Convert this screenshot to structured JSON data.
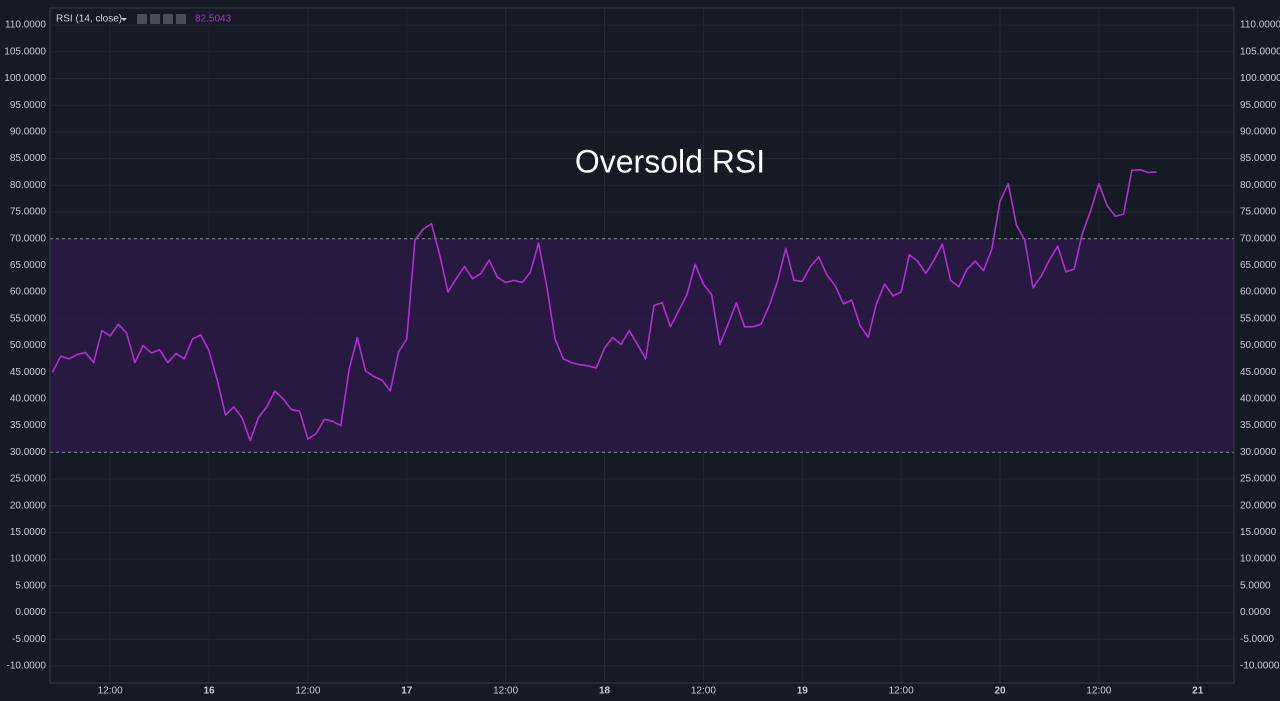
{
  "chart_data": {
    "type": "line",
    "indicator": "RSI (14, close)",
    "last_value": "82.5043",
    "title": "Oversold RSI",
    "xlim": [
      4.7,
      148.4
    ],
    "xticks": [
      {
        "value": 12,
        "label": "12:00"
      },
      {
        "value": 24,
        "label": "16"
      },
      {
        "value": 36,
        "label": "12:00"
      },
      {
        "value": 48,
        "label": "17"
      },
      {
        "value": 60,
        "label": "12:00"
      },
      {
        "value": 72,
        "label": "18"
      },
      {
        "value": 84,
        "label": "12:00"
      },
      {
        "value": 96,
        "label": "19"
      },
      {
        "value": 108,
        "label": "12:00"
      },
      {
        "value": 120,
        "label": "20"
      },
      {
        "value": 132,
        "label": "12:00"
      },
      {
        "value": 144,
        "label": "21"
      }
    ],
    "ylim": [
      -13.2,
      113.2
    ],
    "yticks": [
      {
        "value": -10,
        "label": "-10.0000"
      },
      {
        "value": -5,
        "label": "-5.0000"
      },
      {
        "value": 0,
        "label": "0.0000"
      },
      {
        "value": 5,
        "label": "5.0000"
      },
      {
        "value": 10,
        "label": "10.0000"
      },
      {
        "value": 15,
        "label": "15.0000"
      },
      {
        "value": 20,
        "label": "20.0000"
      },
      {
        "value": 25,
        "label": "25.0000"
      },
      {
        "value": 30,
        "label": "30.0000"
      },
      {
        "value": 35,
        "label": "35.0000"
      },
      {
        "value": 40,
        "label": "40.0000"
      },
      {
        "value": 45,
        "label": "45.0000"
      },
      {
        "value": 50,
        "label": "50.0000"
      },
      {
        "value": 55,
        "label": "55.0000"
      },
      {
        "value": 60,
        "label": "60.0000"
      },
      {
        "value": 65,
        "label": "65.0000"
      },
      {
        "value": 70,
        "label": "70.0000"
      },
      {
        "value": 75,
        "label": "75.0000"
      },
      {
        "value": 80,
        "label": "80.0000"
      },
      {
        "value": 85,
        "label": "85.0000"
      },
      {
        "value": 90,
        "label": "90.0000"
      },
      {
        "value": 95,
        "label": "95.0000"
      },
      {
        "value": 100,
        "label": "100.0000"
      },
      {
        "value": 105,
        "label": "105.0000"
      },
      {
        "value": 110,
        "label": "110.0000"
      }
    ],
    "grid": true,
    "band": {
      "lower": 30,
      "upper": 70,
      "color": "#2a1a45"
    },
    "x": [
      5,
      6,
      7,
      8,
      9,
      10,
      11,
      12,
      13,
      14,
      15,
      16,
      17,
      18,
      19,
      20,
      21,
      22,
      23,
      24,
      25,
      26,
      27,
      28,
      29,
      30,
      31,
      32,
      33,
      34,
      35,
      36,
      37,
      38,
      39,
      40,
      41,
      42,
      43,
      44,
      45,
      46,
      47,
      48,
      49,
      50,
      51,
      52,
      53,
      54,
      55,
      56,
      57,
      58,
      59,
      60,
      61,
      62,
      63,
      64,
      65,
      66,
      67,
      68,
      69,
      70,
      71,
      72,
      73,
      74,
      75,
      76,
      77,
      78,
      79,
      80,
      81,
      82,
      83,
      84,
      85,
      86,
      87,
      88,
      89,
      90,
      91,
      92,
      93,
      94,
      95,
      96,
      97,
      98,
      99,
      100,
      101,
      102,
      103,
      104,
      105,
      106,
      107,
      108,
      109,
      110,
      111,
      112,
      113,
      114,
      115,
      116,
      117,
      118,
      119,
      120,
      121,
      122,
      123,
      124,
      125,
      126,
      127,
      128,
      129,
      130,
      131,
      132,
      133,
      134,
      135,
      136,
      137,
      138,
      139
    ],
    "series": [
      {
        "name": "RSI",
        "color": "#b22fd0",
        "values": [
          45,
          48,
          47.5,
          48.3,
          48.7,
          46.8,
          52.8,
          51.8,
          54,
          52.3,
          46.8,
          50,
          48.6,
          49.2,
          46.8,
          48.5,
          47.5,
          51.2,
          52,
          49,
          43.5,
          37,
          38.5,
          36.5,
          32.2,
          36.5,
          38.5,
          41.5,
          40,
          38,
          37.7,
          32.5,
          33.5,
          36.2,
          35.8,
          35,
          45.5,
          51.5,
          45.2,
          44.2,
          43.5,
          41.5,
          48.8,
          51.2,
          69.8,
          71.8,
          72.8,
          67,
          60,
          62.5,
          64.8,
          62.5,
          63.5,
          66,
          62.8,
          61.8,
          62.2,
          61.8,
          63.7,
          69.2,
          61,
          51.2,
          47.5,
          46.8,
          46.4,
          46.2,
          45.8,
          49.5,
          51.5,
          50.2,
          52.8,
          50.2,
          47.5,
          57.5,
          58,
          53.5,
          56.5,
          59.5,
          65.2,
          61.5,
          59.5,
          50.2,
          54,
          58,
          53.5,
          53.5,
          54,
          57.5,
          62,
          68.2,
          62.2,
          62,
          64.8,
          66.6,
          63.2,
          61.2,
          57.8,
          58.5,
          53.8,
          51.5,
          57.8,
          61.5,
          59.3,
          60,
          67,
          65.8,
          63.5,
          66,
          69,
          62.2,
          61,
          64.3,
          65.8,
          64,
          68,
          77,
          80.3,
          72.5,
          69.8,
          60.8,
          63,
          66,
          68.6,
          63.8,
          64.3,
          71,
          75.2,
          80.3,
          76.2,
          74.2,
          74.6,
          82.8,
          82.9,
          82.4,
          82.5043
        ]
      }
    ]
  }
}
